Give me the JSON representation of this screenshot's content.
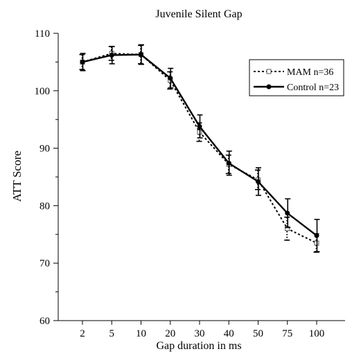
{
  "chart_data": {
    "type": "line",
    "title": "Juvenile Silent Gap",
    "xlabel": "Gap duration in ms",
    "ylabel": "ATT Score",
    "categories": [
      "2",
      "5",
      "10",
      "20",
      "30",
      "40",
      "50",
      "75",
      "100"
    ],
    "ylim": [
      60,
      110
    ],
    "yticks": [
      60,
      70,
      80,
      90,
      100,
      110
    ],
    "grid": false,
    "legend_position": "top-right",
    "series": [
      {
        "name": "MAM n=36",
        "style": "dotted",
        "marker": "open-square",
        "color": "#000000",
        "values": [
          105.0,
          106.5,
          106.3,
          101.8,
          92.8,
          87.2,
          84.5,
          76.0,
          73.5
        ],
        "errors": [
          1.3,
          1.2,
          1.6,
          1.5,
          1.6,
          1.6,
          1.7,
          2.0,
          1.6
        ]
      },
      {
        "name": "Control n=23",
        "style": "solid",
        "marker": "filled-circle",
        "color": "#000000",
        "values": [
          105.0,
          106.2,
          106.3,
          102.2,
          93.8,
          87.4,
          84.2,
          78.7,
          74.8
        ],
        "errors": [
          1.5,
          1.5,
          1.7,
          1.7,
          2.0,
          2.1,
          2.4,
          2.5,
          2.8
        ]
      }
    ]
  }
}
